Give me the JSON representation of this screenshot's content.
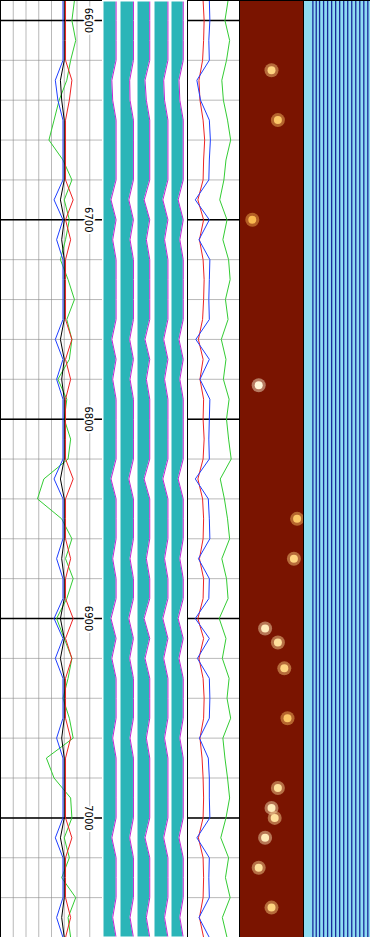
{
  "chart_data": {
    "type": "well_log",
    "ylim": [
      6590,
      7060
    ],
    "yticks": [
      6600,
      6700,
      6800,
      6900,
      7000
    ],
    "gridlines": [
      6600,
      6620,
      6640,
      6660,
      6680,
      6700,
      6720,
      6740,
      6760,
      6780,
      6800,
      6820,
      6840,
      6860,
      6880,
      6900,
      6920,
      6940,
      6960,
      6980,
      7000,
      7020,
      7040,
      7060
    ],
    "depth": [
      6590,
      6600,
      6610,
      6620,
      6630,
      6640,
      6650,
      6660,
      6670,
      6680,
      6690,
      6700,
      6710,
      6720,
      6730,
      6740,
      6750,
      6760,
      6770,
      6780,
      6790,
      6800,
      6810,
      6820,
      6830,
      6840,
      6850,
      6860,
      6870,
      6880,
      6890,
      6900,
      6910,
      6920,
      6930,
      6940,
      6950,
      6960,
      6970,
      6980,
      6990,
      7000,
      7010,
      7020,
      7030,
      7040,
      7050,
      7060
    ],
    "tracks": [
      {
        "type": "curves",
        "xlim": [
          0,
          8
        ],
        "xgrid": [
          1,
          2,
          3,
          4,
          5,
          6,
          7
        ],
        "grid": true,
        "tick_labels": "y",
        "series": [
          {
            "color": "#33cc33",
            "values": [
              5.8,
              5.6,
              5.9,
              5.5,
              5.2,
              4.6,
              4.2,
              3.8,
              4.9,
              5.6,
              5.0,
              5.4,
              5.1,
              4.7,
              5.3,
              5.8,
              5.2,
              5.6,
              5.4,
              4.5,
              5.2,
              5.0,
              5.5,
              5.3,
              3.4,
              2.9,
              4.8,
              5.6,
              5.1,
              5.7,
              5.2,
              4.4,
              5.0,
              5.6,
              5.3,
              4.9,
              5.4,
              5.7,
              3.6,
              4.2,
              5.5,
              5.6,
              5.0,
              5.4,
              4.8,
              5.9,
              5.3,
              5.5
            ]
          },
          {
            "color": "#000000",
            "values": [
              5.0,
              5.0,
              5.0,
              5.0,
              4.7,
              4.8,
              5.0,
              5.0,
              5.0,
              5.0,
              4.7,
              5.0,
              4.8,
              5.0,
              5.0,
              5.0,
              5.0,
              4.7,
              5.0,
              4.8,
              5.0,
              5.0,
              5.0,
              5.0,
              4.7,
              5.0,
              5.0,
              5.0,
              4.8,
              5.0,
              5.0,
              4.7,
              5.0,
              4.7,
              5.0,
              5.0,
              5.0,
              4.8,
              5.0,
              5.0,
              5.0,
              5.0,
              4.7,
              5.0,
              5.0,
              5.0,
              4.8,
              5.0
            ]
          },
          {
            "color": "#ee2222",
            "values": [
              5.1,
              5.1,
              5.1,
              5.1,
              5.6,
              5.4,
              5.1,
              5.1,
              5.1,
              5.1,
              5.7,
              5.1,
              5.5,
              5.1,
              5.1,
              5.1,
              5.1,
              5.6,
              5.1,
              5.5,
              5.1,
              5.1,
              5.1,
              5.1,
              5.7,
              5.1,
              5.1,
              5.1,
              5.5,
              5.1,
              5.1,
              5.7,
              5.1,
              5.6,
              5.1,
              5.1,
              5.1,
              5.5,
              5.1,
              5.1,
              5.1,
              5.1,
              5.6,
              5.1,
              5.1,
              5.1,
              5.5,
              5.1
            ]
          },
          {
            "color": "#1f3fff",
            "values": [
              4.9,
              4.9,
              4.9,
              4.9,
              4.3,
              4.5,
              4.9,
              4.9,
              4.9,
              4.9,
              4.2,
              4.9,
              4.4,
              4.9,
              4.9,
              4.9,
              4.9,
              4.3,
              4.9,
              4.4,
              4.9,
              4.9,
              4.9,
              4.9,
              4.2,
              4.9,
              4.9,
              4.9,
              4.4,
              4.9,
              4.9,
              4.2,
              4.9,
              4.3,
              4.9,
              4.9,
              4.9,
              4.4,
              4.9,
              4.9,
              4.9,
              4.9,
              4.3,
              4.9,
              4.9,
              4.9,
              4.4,
              4.9
            ]
          }
        ]
      },
      {
        "type": "columns",
        "xlim": [
          0,
          1
        ],
        "series": [
          {
            "color": "#2bb5b8",
            "values": [
              0.8,
              0.8,
              0.8,
              0.8,
              0.55,
              0.6,
              0.8,
              0.8,
              0.8,
              0.8,
              0.5,
              0.8,
              0.6,
              0.8,
              0.8,
              0.8,
              0.8,
              0.55,
              0.8,
              0.6,
              0.8,
              0.8,
              0.8,
              0.8,
              0.5,
              0.8,
              0.8,
              0.8,
              0.6,
              0.8,
              0.8,
              0.5,
              0.8,
              0.55,
              0.8,
              0.8,
              0.8,
              0.6,
              0.8,
              0.8,
              0.8,
              0.8,
              0.55,
              0.8,
              0.8,
              0.8,
              0.6,
              0.8
            ]
          },
          {
            "color": "#2bb5b8",
            "values": [
              0.82,
              0.82,
              0.82,
              0.82,
              0.6,
              0.62,
              0.82,
              0.82,
              0.82,
              0.82,
              0.55,
              0.82,
              0.62,
              0.82,
              0.82,
              0.82,
              0.82,
              0.6,
              0.82,
              0.62,
              0.82,
              0.82,
              0.82,
              0.82,
              0.55,
              0.82,
              0.82,
              0.82,
              0.62,
              0.82,
              0.82,
              0.55,
              0.82,
              0.6,
              0.82,
              0.82,
              0.82,
              0.62,
              0.82,
              0.82,
              0.82,
              0.82,
              0.6,
              0.82,
              0.82,
              0.82,
              0.62,
              0.82
            ]
          },
          {
            "color": "#2bb5b8",
            "values": [
              0.78,
              0.78,
              0.78,
              0.78,
              0.5,
              0.58,
              0.78,
              0.78,
              0.78,
              0.78,
              0.45,
              0.78,
              0.58,
              0.78,
              0.78,
              0.78,
              0.78,
              0.5,
              0.78,
              0.58,
              0.78,
              0.78,
              0.78,
              0.78,
              0.45,
              0.78,
              0.78,
              0.78,
              0.58,
              0.78,
              0.78,
              0.45,
              0.78,
              0.5,
              0.78,
              0.78,
              0.78,
              0.58,
              0.78,
              0.78,
              0.78,
              0.78,
              0.5,
              0.78,
              0.78,
              0.78,
              0.58,
              0.78
            ]
          },
          {
            "color": "#2bb5b8",
            "values": [
              0.85,
              0.85,
              0.85,
              0.85,
              0.6,
              0.65,
              0.85,
              0.85,
              0.85,
              0.85,
              0.55,
              0.85,
              0.65,
              0.85,
              0.85,
              0.85,
              0.85,
              0.6,
              0.85,
              0.65,
              0.85,
              0.85,
              0.85,
              0.85,
              0.55,
              0.85,
              0.85,
              0.85,
              0.65,
              0.85,
              0.85,
              0.55,
              0.85,
              0.6,
              0.85,
              0.85,
              0.85,
              0.65,
              0.85,
              0.85,
              0.85,
              0.85,
              0.6,
              0.85,
              0.85,
              0.85,
              0.65,
              0.85
            ]
          },
          {
            "color": "#2bb5b8",
            "values": [
              0.75,
              0.75,
              0.75,
              0.75,
              0.5,
              0.55,
              0.75,
              0.75,
              0.75,
              0.75,
              0.45,
              0.75,
              0.55,
              0.75,
              0.75,
              0.75,
              0.75,
              0.5,
              0.75,
              0.55,
              0.75,
              0.75,
              0.75,
              0.75,
              0.45,
              0.75,
              0.75,
              0.75,
              0.55,
              0.75,
              0.75,
              0.45,
              0.75,
              0.5,
              0.75,
              0.75,
              0.75,
              0.55,
              0.75,
              0.75,
              0.75,
              0.75,
              0.5,
              0.75,
              0.75,
              0.75,
              0.55,
              0.75
            ]
          }
        ]
      },
      {
        "type": "curves",
        "xlim": [
          0,
          10
        ],
        "grid": true,
        "series": [
          {
            "color": "#ee2222",
            "values": [
              3.0,
              3.2,
              3.1,
              2.9,
              2.2,
              2.4,
              3.0,
              3.3,
              3.1,
              3.0,
              2.0,
              3.1,
              2.3,
              3.0,
              3.2,
              3.1,
              2.9,
              2.1,
              3.0,
              2.4,
              3.1,
              3.0,
              3.2,
              3.0,
              2.0,
              2.9,
              3.1,
              3.0,
              2.3,
              3.1,
              3.0,
              2.0,
              3.1,
              2.2,
              3.0,
              3.2,
              3.1,
              2.4,
              2.8,
              3.0,
              3.1,
              3.0,
              2.1,
              3.0,
              3.1,
              3.0,
              2.3,
              3.1
            ]
          },
          {
            "color": "#1f3fff",
            "values": [
              4.2,
              4.3,
              4.1,
              4.2,
              1.8,
              2.5,
              4.2,
              4.4,
              4.2,
              4.1,
              1.5,
              4.2,
              2.2,
              4.3,
              4.2,
              4.1,
              4.2,
              1.6,
              4.2,
              2.4,
              4.3,
              4.2,
              4.1,
              4.2,
              1.5,
              4.0,
              4.2,
              4.3,
              2.1,
              4.2,
              4.1,
              1.5,
              4.2,
              1.9,
              4.2,
              4.3,
              4.2,
              2.3,
              4.0,
              4.2,
              4.2,
              4.3,
              1.8,
              4.2,
              4.1,
              4.2,
              2.2,
              4.2
            ]
          },
          {
            "color": "#33cc33",
            "values": [
              7.8,
              7.2,
              8.1,
              7.5,
              6.6,
              6.9,
              7.7,
              8.3,
              7.4,
              7.0,
              6.2,
              7.6,
              6.8,
              7.9,
              8.2,
              7.3,
              7.8,
              6.5,
              7.4,
              6.9,
              8.0,
              7.5,
              7.9,
              8.4,
              6.3,
              7.1,
              7.7,
              8.1,
              6.6,
              7.5,
              7.8,
              6.1,
              7.4,
              6.7,
              8.0,
              7.6,
              8.3,
              6.8,
              7.2,
              7.7,
              8.1,
              7.4,
              6.4,
              7.9,
              7.3,
              8.2,
              6.7,
              7.6
            ]
          }
        ]
      },
      {
        "type": "heat",
        "xlim": [
          0,
          1
        ],
        "zlim": [
          0,
          1
        ],
        "colors": [
          "#7a1400",
          "#e0600a",
          "#ffc040",
          "#fff6d8"
        ],
        "spots": {
          "depth": [
            6625,
            6650,
            6700,
            6783,
            6850,
            6870,
            6905,
            6912,
            6925,
            6950,
            6985,
            6995,
            7000,
            7010,
            7025,
            7045
          ],
          "x": [
            0.5,
            0.6,
            0.2,
            0.3,
            0.9,
            0.85,
            0.4,
            0.6,
            0.7,
            0.75,
            0.6,
            0.5,
            0.55,
            0.4,
            0.3,
            0.5
          ],
          "values": [
            0.7,
            0.6,
            0.5,
            1.0,
            0.6,
            0.7,
            0.9,
            0.8,
            0.7,
            0.6,
            0.8,
            0.9,
            0.8,
            0.9,
            0.8,
            0.7
          ]
        }
      },
      {
        "type": "waveform",
        "xlim": [
          0,
          100
        ],
        "colors": [
          "#8edcf2",
          "#1a2a9a"
        ],
        "bands": [
          14,
          19,
          24,
          30,
          36,
          42,
          48,
          54,
          60,
          66,
          72,
          78,
          84,
          90,
          96
        ]
      }
    ]
  }
}
